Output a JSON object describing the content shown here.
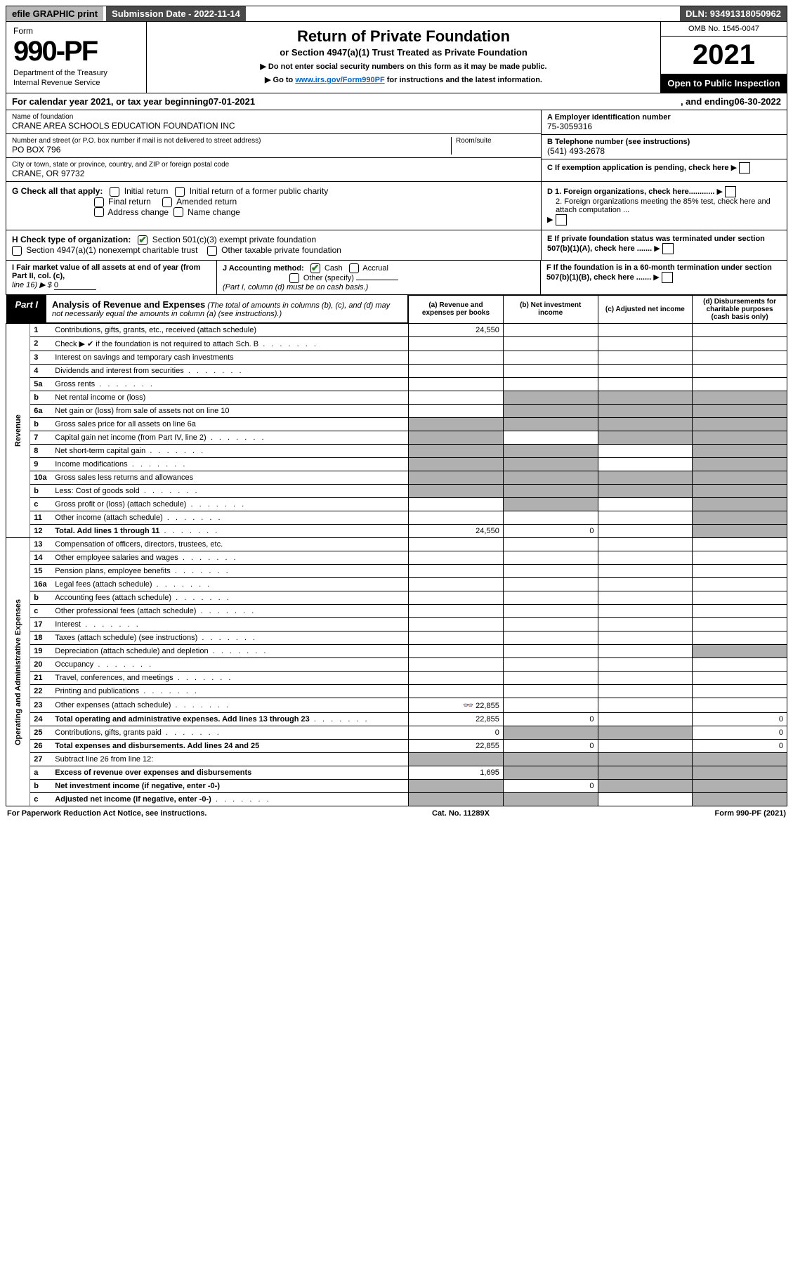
{
  "topbar": {
    "efile": "efile GRAPHIC print",
    "submission": "Submission Date - 2022-11-14",
    "dln": "DLN: 93491318050962"
  },
  "header": {
    "form_label": "Form",
    "form_number": "990-PF",
    "dept1": "Department of the Treasury",
    "dept2": "Internal Revenue Service",
    "title": "Return of Private Foundation",
    "subtitle": "or Section 4947(a)(1) Trust Treated as Private Foundation",
    "instr1": "▶ Do not enter social security numbers on this form as it may be made public.",
    "instr2": "▶ Go to ",
    "instr2_link": "www.irs.gov/Form990PF",
    "instr2_end": " for instructions and the latest information.",
    "omb": "OMB No. 1545-0047",
    "year": "2021",
    "open": "Open to Public Inspection"
  },
  "cal": {
    "text1": "For calendar year 2021, or tax year beginning ",
    "begin": "07-01-2021",
    "text2": ", and ending ",
    "end": "06-30-2022"
  },
  "id": {
    "name_label": "Name of foundation",
    "name": "CRANE AREA SCHOOLS EDUCATION FOUNDATION INC",
    "addr_label": "Number and street (or P.O. box number if mail is not delivered to street address)",
    "addr": "PO BOX 796",
    "room_label": "Room/suite",
    "room": "",
    "city_label": "City or town, state or province, country, and ZIP or foreign postal code",
    "city": "CRANE, OR  97732",
    "ein_label": "A Employer identification number",
    "ein": "75-3059316",
    "tel_label": "B Telephone number (see instructions)",
    "tel": "(541) 493-2678",
    "c_label": "C If exemption application is pending, check here"
  },
  "g": {
    "label": "G Check all that apply:",
    "initial": "Initial return",
    "initial_former": "Initial return of a former public charity",
    "final": "Final return",
    "amended": "Amended return",
    "addr_change": "Address change",
    "name_change": "Name change"
  },
  "h": {
    "label": "H Check type of organization:",
    "s501": "Section 501(c)(3) exempt private foundation",
    "s4947": "Section 4947(a)(1) nonexempt charitable trust",
    "other": "Other taxable private foundation"
  },
  "d": {
    "d1": "D 1. Foreign organizations, check here............",
    "d2": "2. Foreign organizations meeting the 85% test, check here and attach computation ..."
  },
  "e": {
    "label": "E  If private foundation status was terminated under section 507(b)(1)(A), check here ......."
  },
  "fmv": {
    "i_label": "I Fair market value of all assets at end of year (from Part II, col. (c),",
    "i_line": "line 16) ▶ $",
    "i_val": "0",
    "j_label": "J Accounting method:",
    "j_cash": "Cash",
    "j_accrual": "Accrual",
    "j_other": "Other (specify)",
    "j_note": "(Part I, column (d) must be on cash basis.)",
    "f_label": "F  If the foundation is in a 60-month termination under section 507(b)(1)(B), check here ......."
  },
  "part1": {
    "tag": "Part I",
    "title": "Analysis of Revenue and Expenses",
    "title_note": "(The total of amounts in columns (b), (c), and (d) may not necessarily equal the amounts in column (a) (see instructions).)",
    "col_a": "(a) Revenue and expenses per books",
    "col_b": "(b) Net investment income",
    "col_c": "(c) Adjusted net income",
    "col_d": "(d) Disbursements for charitable purposes (cash basis only)"
  },
  "vlabels": {
    "revenue": "Revenue",
    "expenses": "Operating and Administrative Expenses"
  },
  "rows": [
    {
      "n": "1",
      "d": "Contributions, gifts, grants, etc., received (attach schedule)",
      "a": "24,550"
    },
    {
      "n": "2",
      "d": "Check ▶ ✔ if the foundation is not required to attach Sch. B",
      "dots": true
    },
    {
      "n": "3",
      "d": "Interest on savings and temporary cash investments"
    },
    {
      "n": "4",
      "d": "Dividends and interest from securities",
      "dots": true
    },
    {
      "n": "5a",
      "d": "Gross rents",
      "dots": true
    },
    {
      "n": "b",
      "d": "Net rental income or (loss)",
      "shade_bcd": true
    },
    {
      "n": "6a",
      "d": "Net gain or (loss) from sale of assets not on line 10",
      "shade_bcd": true
    },
    {
      "n": "b",
      "d": "Gross sales price for all assets on line 6a",
      "shade_all": true
    },
    {
      "n": "7",
      "d": "Capital gain net income (from Part IV, line 2)",
      "dots": true,
      "shade_a": true,
      "shade_cd": true
    },
    {
      "n": "8",
      "d": "Net short-term capital gain",
      "dots": true,
      "shade_ab": true,
      "shade_d": true
    },
    {
      "n": "9",
      "d": "Income modifications",
      "dots": true,
      "shade_ab": true,
      "shade_d": true
    },
    {
      "n": "10a",
      "d": "Gross sales less returns and allowances",
      "shade_all": true
    },
    {
      "n": "b",
      "d": "Less: Cost of goods sold",
      "dots": true,
      "shade_all": true
    },
    {
      "n": "c",
      "d": "Gross profit or (loss) (attach schedule)",
      "dots": true,
      "shade_b": true,
      "shade_d": true
    },
    {
      "n": "11",
      "d": "Other income (attach schedule)",
      "dots": true,
      "shade_d": true
    },
    {
      "n": "12",
      "d": "Total. Add lines 1 through 11",
      "dots": true,
      "bold": true,
      "a": "24,550",
      "b": "0",
      "shade_d": true
    },
    {
      "n": "13",
      "d": "Compensation of officers, directors, trustees, etc."
    },
    {
      "n": "14",
      "d": "Other employee salaries and wages",
      "dots": true
    },
    {
      "n": "15",
      "d": "Pension plans, employee benefits",
      "dots": true
    },
    {
      "n": "16a",
      "d": "Legal fees (attach schedule)",
      "dots": true
    },
    {
      "n": "b",
      "d": "Accounting fees (attach schedule)",
      "dots": true
    },
    {
      "n": "c",
      "d": "Other professional fees (attach schedule)",
      "dots": true
    },
    {
      "n": "17",
      "d": "Interest",
      "dots": true
    },
    {
      "n": "18",
      "d": "Taxes (attach schedule) (see instructions)",
      "dots": true
    },
    {
      "n": "19",
      "d": "Depreciation (attach schedule) and depletion",
      "dots": true,
      "shade_d": true
    },
    {
      "n": "20",
      "d": "Occupancy",
      "dots": true
    },
    {
      "n": "21",
      "d": "Travel, conferences, and meetings",
      "dots": true
    },
    {
      "n": "22",
      "d": "Printing and publications",
      "dots": true
    },
    {
      "n": "23",
      "d": "Other expenses (attach schedule)",
      "dots": true,
      "a": "22,855",
      "icon": true
    },
    {
      "n": "24",
      "d": "Total operating and administrative expenses. Add lines 13 through 23",
      "dots": true,
      "bold": true,
      "a": "22,855",
      "b": "0",
      "d_val": "0"
    },
    {
      "n": "25",
      "d": "Contributions, gifts, grants paid",
      "dots": true,
      "a": "0",
      "shade_bc": true,
      "d_val": "0"
    },
    {
      "n": "26",
      "d": "Total expenses and disbursements. Add lines 24 and 25",
      "bold": true,
      "a": "22,855",
      "b": "0",
      "d_val": "0"
    },
    {
      "n": "27",
      "d": "Subtract line 26 from line 12:",
      "shade_all": true
    },
    {
      "n": "a",
      "d": "Excess of revenue over expenses and disbursements",
      "bold": true,
      "a": "1,695",
      "shade_bcd": true
    },
    {
      "n": "b",
      "d": "Net investment income (if negative, enter -0-)",
      "bold": true,
      "shade_a": true,
      "b": "0",
      "shade_cd": true
    },
    {
      "n": "c",
      "d": "Adjusted net income (if negative, enter -0-)",
      "bold": true,
      "dots": true,
      "shade_ab": true,
      "shade_d": true
    }
  ],
  "foot": {
    "left": "For Paperwork Reduction Act Notice, see instructions.",
    "mid": "Cat. No. 11289X",
    "right": "Form 990-PF (2021)"
  }
}
